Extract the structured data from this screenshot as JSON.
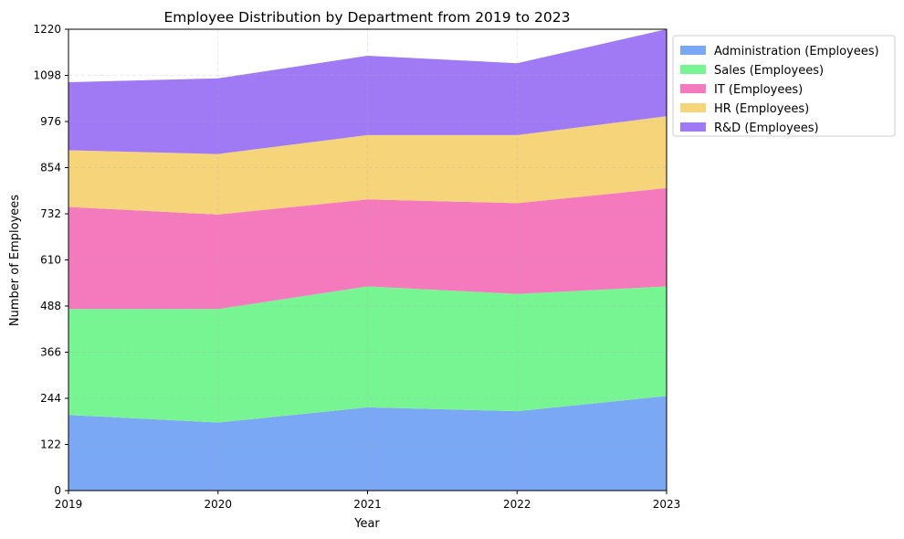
{
  "chart_data": {
    "type": "area",
    "stacked": true,
    "title": "Employee Distribution by Department from 2019 to 2023",
    "xlabel": "Year",
    "ylabel": "Number of Employees",
    "x": [
      "2019",
      "2020",
      "2021",
      "2022",
      "2023"
    ],
    "xlim": [
      2019,
      2023
    ],
    "ylim": [
      0,
      1220
    ],
    "yticks": [
      0,
      122,
      244,
      366,
      488,
      610,
      732,
      854,
      976,
      1098,
      1220
    ],
    "grid": true,
    "legend_position": "outside top-right",
    "series": [
      {
        "name": "Administration (Employees)",
        "values": [
          200,
          180,
          220,
          210,
          250
        ],
        "color": "#7aa8f5"
      },
      {
        "name": "Sales (Employees)",
        "values": [
          280,
          300,
          320,
          310,
          290
        ],
        "color": "#78f593"
      },
      {
        "name": "IT (Employees)",
        "values": [
          270,
          250,
          230,
          240,
          260
        ],
        "color": "#f57abd"
      },
      {
        "name": "HR (Employees)",
        "values": [
          150,
          160,
          170,
          180,
          190
        ],
        "color": "#f6d57a"
      },
      {
        "name": "R&D (Employees)",
        "values": [
          180,
          200,
          210,
          190,
          230
        ],
        "color": "#a07af5"
      }
    ]
  }
}
